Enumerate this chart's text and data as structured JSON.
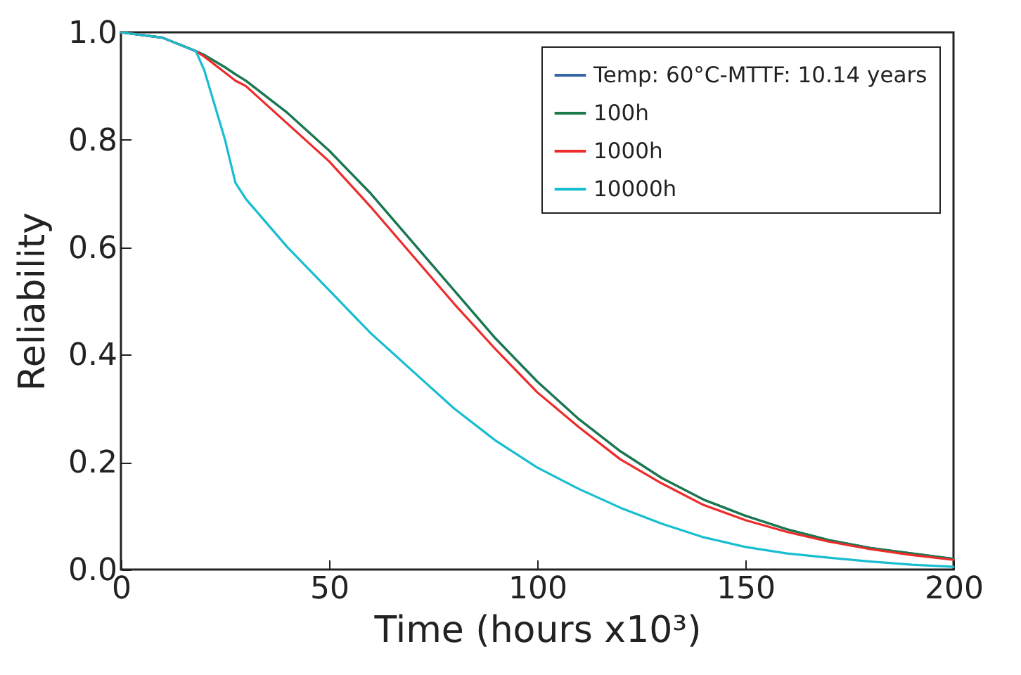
{
  "chart_data": {
    "type": "line",
    "xlabel": "Time (hours x10³)",
    "ylabel": "Reliability",
    "x": [
      0,
      10,
      18,
      20,
      25,
      27.5,
      30,
      40,
      50,
      60,
      70,
      80,
      90,
      100,
      110,
      120,
      130,
      140,
      150,
      160,
      170,
      180,
      190,
      200
    ],
    "series": [
      {
        "name": "Temp: 60°C-MTTF: 10.14 years",
        "color": "#3465a4",
        "values": [
          1.0,
          0.99,
          0.965,
          0.958,
          0.935,
          0.922,
          0.91,
          0.85,
          0.78,
          0.7,
          0.61,
          0.52,
          0.43,
          0.35,
          0.28,
          0.22,
          0.17,
          0.13,
          0.1,
          0.075,
          0.055,
          0.04,
          0.03,
          0.02
        ]
      },
      {
        "name": "100h",
        "color": "#1a7a4a",
        "values": [
          1.0,
          0.99,
          0.965,
          0.958,
          0.935,
          0.922,
          0.91,
          0.85,
          0.78,
          0.7,
          0.61,
          0.52,
          0.43,
          0.35,
          0.28,
          0.22,
          0.17,
          0.13,
          0.1,
          0.075,
          0.055,
          0.04,
          0.03,
          0.02
        ]
      },
      {
        "name": "1000h",
        "color": "#ee2b2b",
        "values": [
          1.0,
          0.99,
          0.965,
          0.955,
          0.925,
          0.91,
          0.9,
          0.83,
          0.76,
          0.675,
          0.585,
          0.495,
          0.41,
          0.33,
          0.265,
          0.205,
          0.16,
          0.12,
          0.092,
          0.07,
          0.052,
          0.038,
          0.027,
          0.018
        ]
      },
      {
        "name": "10000h",
        "color": "#17becf",
        "values": [
          1.0,
          0.99,
          0.965,
          0.93,
          0.8,
          0.72,
          0.69,
          0.6,
          0.52,
          0.44,
          0.37,
          0.3,
          0.24,
          0.19,
          0.15,
          0.115,
          0.085,
          0.06,
          0.042,
          0.03,
          0.022,
          0.015,
          0.009,
          0.005
        ]
      }
    ],
    "xlim": [
      0,
      200
    ],
    "xticks": [
      0,
      50,
      100,
      150,
      200
    ],
    "ylim": [
      0,
      1
    ],
    "yticks": [
      {
        "value": 0,
        "label": "0.0"
      },
      {
        "value": 0.2,
        "label": "0.2"
      },
      {
        "value": 0.4,
        "label": "0.4"
      },
      {
        "value": 0.6,
        "label": "0.6"
      },
      {
        "value": 0.8,
        "label": "0.8"
      },
      {
        "value": 1,
        "label": "1.0"
      }
    ],
    "legend": "top right",
    "grid": false
  }
}
